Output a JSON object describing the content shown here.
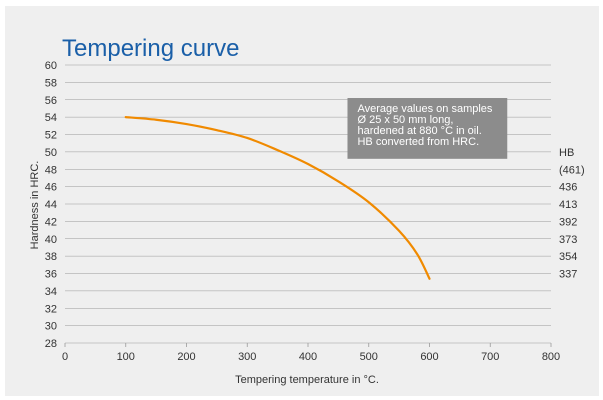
{
  "chart_data": {
    "type": "line",
    "title": "Tempering curve",
    "xlabel": "Tempering temperature in °C.",
    "ylabel": "Hardness in HRC.",
    "xlim": [
      0,
      800
    ],
    "ylim": [
      28,
      60
    ],
    "x_ticks": [
      0,
      100,
      200,
      300,
      400,
      500,
      600,
      700,
      800
    ],
    "y_ticks": [
      28,
      30,
      32,
      34,
      36,
      38,
      40,
      42,
      44,
      46,
      48,
      50,
      52,
      54,
      56,
      58,
      60
    ],
    "grid": true,
    "series": [
      {
        "color": "#f08a00",
        "x": [
          100,
          150,
          200,
          250,
          300,
          350,
          400,
          450,
          500,
          550,
          580,
          600
        ],
        "y": [
          54,
          53.7,
          53.2,
          52.5,
          51.6,
          50.2,
          48.6,
          46.6,
          44.2,
          40.9,
          38.2,
          35.4
        ]
      }
    ],
    "hb_scale": {
      "label": "HB",
      "labels": [
        "(461)",
        "436",
        "413",
        "392",
        "373",
        "354",
        "337"
      ],
      "hrc": [
        48,
        46,
        44,
        42,
        40,
        38,
        36
      ]
    },
    "annotation": [
      "Average values on samples",
      "Ø 25 x 50 mm long,",
      "hardened at 880 °C in oil.",
      "HB converted from HRC."
    ],
    "colors": {
      "title": "#1a5fa8",
      "background": "#efefef",
      "annotation_box": "#8c8c8c",
      "grid": "#9a9a9a"
    }
  }
}
